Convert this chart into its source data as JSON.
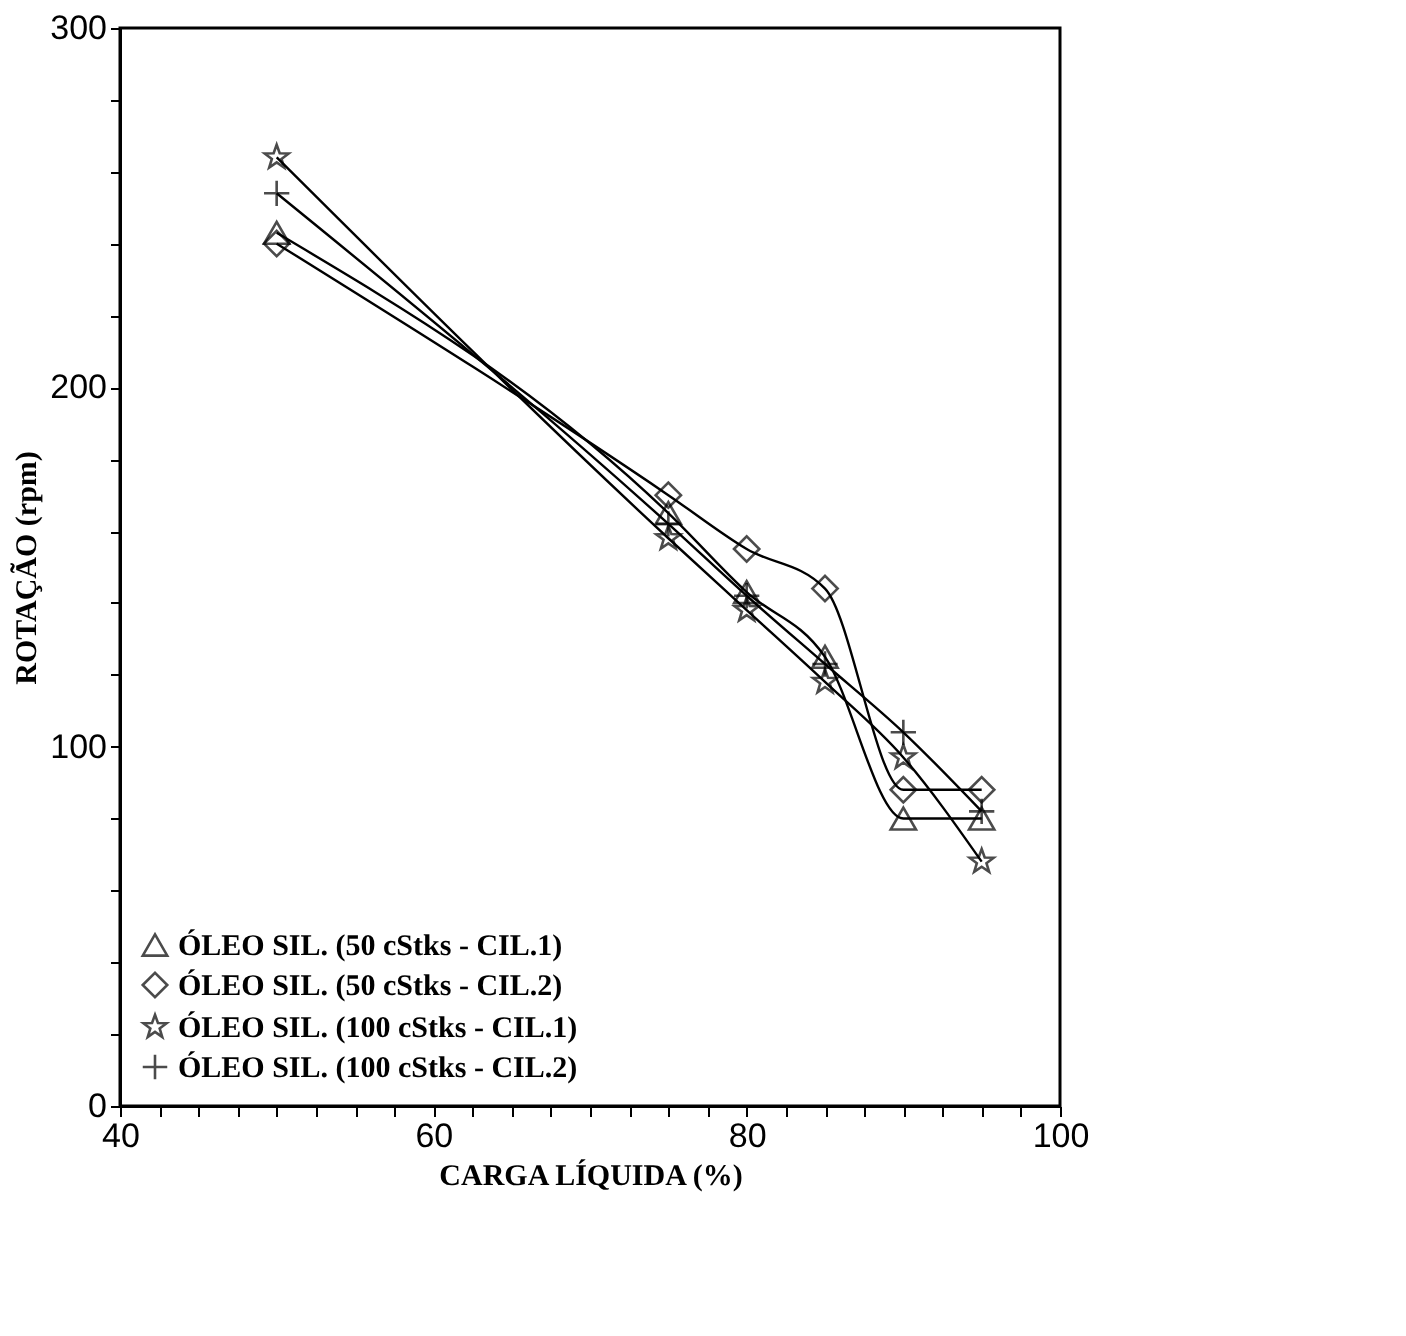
{
  "chart_data": {
    "type": "line",
    "xlabel": "CARGA LÍQUIDA (%)",
    "ylabel": "ROTAÇÃO (rpm)",
    "x": [
      50,
      75,
      80,
      85,
      90,
      95
    ],
    "series": [
      {
        "name": "ÓLEO SIL. (50 cStks - CIL.1)",
        "color": "#000000",
        "marker": "triangle",
        "values": [
          243,
          165,
          143,
          125,
          80,
          80
        ]
      },
      {
        "name": "ÓLEO SIL. (50 cStks - CIL.2)",
        "color": "#000000",
        "marker": "diamond",
        "values": [
          240,
          170,
          155,
          144,
          88,
          88
        ]
      },
      {
        "name": "ÓLEO SIL. (100 cStks - CIL.1)",
        "color": "#000000",
        "marker": "star",
        "values": [
          264,
          158,
          138,
          118,
          97,
          68
        ]
      },
      {
        "name": "ÓLEO SIL. (100 cStks - CIL.2)",
        "color": "#000000",
        "marker": "cross",
        "values": [
          254,
          162,
          142,
          123,
          104,
          82
        ]
      }
    ],
    "xlim": [
      40,
      100
    ],
    "ylim": [
      0,
      300
    ],
    "xticks": [
      40,
      {
        "value": 42.5,
        "label": null
      },
      {
        "value": 45,
        "label": null
      },
      {
        "value": 47.5,
        "label": null
      },
      {
        "value": 50,
        "label": null
      },
      {
        "value": 52.5,
        "label": null
      },
      {
        "value": 55,
        "label": null
      },
      {
        "value": 57.5,
        "label": null
      },
      60,
      {
        "value": 62.5,
        "label": null
      },
      {
        "value": 65,
        "label": null
      },
      {
        "value": 67.5,
        "label": null
      },
      {
        "value": 70,
        "label": null
      },
      {
        "value": 72.5,
        "label": null
      },
      {
        "value": 75,
        "label": null
      },
      {
        "value": 77.5,
        "label": null
      },
      80,
      {
        "value": 82.5,
        "label": null
      },
      {
        "value": 85,
        "label": null
      },
      {
        "value": 87.5,
        "label": null
      },
      {
        "value": 90,
        "label": null
      },
      {
        "value": 92.5,
        "label": null
      },
      {
        "value": 95,
        "label": null
      },
      {
        "value": 97.5,
        "label": null
      },
      100
    ],
    "yticks": [
      0,
      {
        "value": 20,
        "label": null
      },
      {
        "value": 40,
        "label": null
      },
      {
        "value": 60,
        "label": null
      },
      {
        "value": 80,
        "label": null
      },
      100,
      {
        "value": 120,
        "label": null
      },
      {
        "value": 140,
        "label": null
      },
      {
        "value": 160,
        "label": null
      },
      {
        "value": 180,
        "label": null
      },
      200,
      {
        "value": 220,
        "label": null
      },
      {
        "value": 240,
        "label": null
      },
      {
        "value": 260,
        "label": null
      },
      {
        "value": 280,
        "label": null
      },
      300
    ],
    "grid": false,
    "legend": "bottom left",
    "line_style": "solid"
  }
}
